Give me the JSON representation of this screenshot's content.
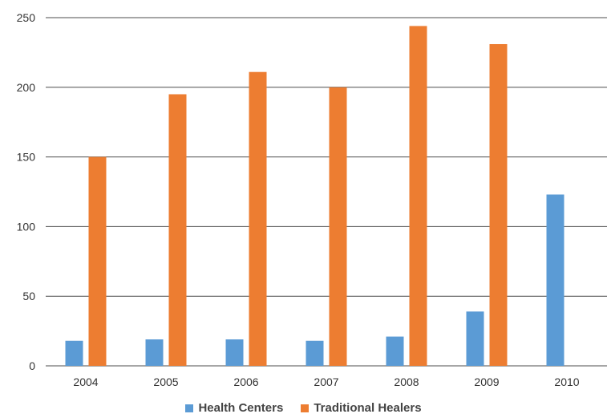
{
  "chart_data": {
    "type": "bar",
    "categories": [
      "2004",
      "2005",
      "2006",
      "2007",
      "2008",
      "2009",
      "2010"
    ],
    "series": [
      {
        "name": "Health Centers",
        "color": "#5b9bd5",
        "values": [
          18,
          19,
          19,
          18,
          21,
          39,
          123
        ]
      },
      {
        "name": "Traditional Healers",
        "color": "#ed7d31",
        "values": [
          150,
          195,
          211,
          200,
          244,
          231,
          null
        ]
      }
    ],
    "ylim": [
      0,
      250
    ],
    "yticks": [
      "0",
      "50",
      "100",
      "150",
      "200",
      "250"
    ],
    "grid": true,
    "legend_position": "bottom"
  }
}
